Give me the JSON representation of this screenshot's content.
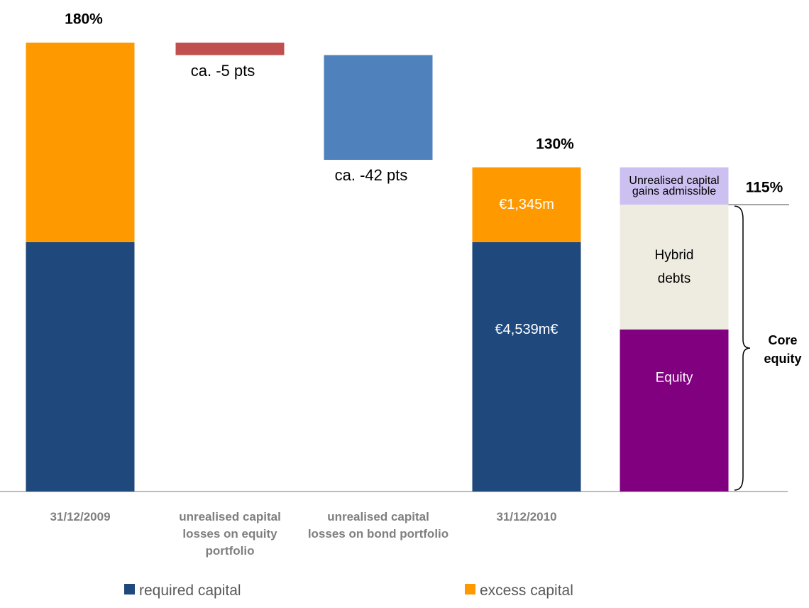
{
  "chart_data": {
    "type": "waterfall",
    "categories": [
      "31/12/2009",
      "unrealised capital losses on equity portfolio",
      "unrealised capital losses on bond portfolio",
      "31/12/2010",
      null
    ],
    "series": [
      {
        "name": "required capital",
        "color": "#1f497d",
        "values": [
          100,
          null,
          null,
          100,
          null
        ],
        "segment_labels": [
          null,
          null,
          null,
          "€4,539m€",
          null
        ]
      },
      {
        "name": "excess capital",
        "color": "#ff9900",
        "values": [
          80,
          null,
          null,
          30,
          null
        ],
        "segment_labels": [
          null,
          null,
          null,
          "€1,345m",
          null
        ]
      }
    ],
    "changes": [
      null,
      -5,
      -42,
      null,
      null
    ],
    "change_labels": [
      null,
      "ca. -5 pts",
      "ca. -42 pts",
      null,
      null
    ],
    "change_colors": [
      null,
      "#c0504d",
      "#4f81bd",
      null,
      null
    ],
    "totals": [
      180,
      null,
      null,
      130,
      null
    ],
    "total_labels": [
      "180%",
      null,
      null,
      "130%",
      null
    ],
    "breakdown_index": 4,
    "breakdown": [
      {
        "name": "Equity",
        "value": 65,
        "color": "#800080",
        "text_color": "#ffffff"
      },
      {
        "name": "Hybrid debts",
        "value": 50,
        "color": "#eeece1",
        "text_color": "#000000"
      },
      {
        "name": "Unrealised capital gains admissible",
        "value": 15,
        "color": "#ccc0f0",
        "text_color": "#000000"
      }
    ],
    "core_equity": {
      "label": "Core equity",
      "value": 115,
      "value_label": "115%"
    }
  }
}
